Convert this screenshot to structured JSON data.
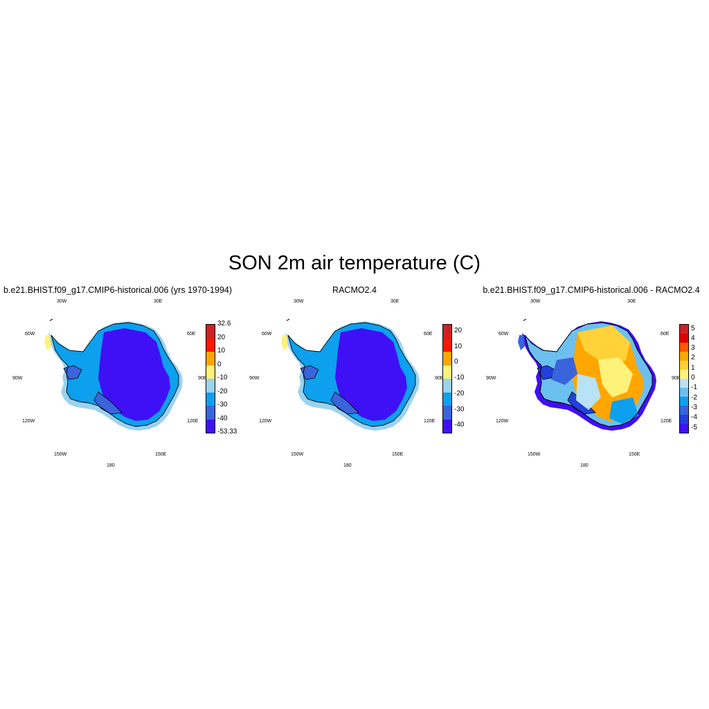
{
  "figure": {
    "title": "SON 2m air temperature (C)"
  },
  "lon_labels": [
    "30W",
    "30E",
    "60W",
    "60E",
    "90W",
    "90E",
    "120W",
    "120E",
    "150W",
    "150E",
    "180"
  ],
  "panels": [
    {
      "id": "model",
      "title": "b.e21.BHIST.f09_g17.CMIP6-historical.006 (yrs 1970-1994)",
      "colorbar": {
        "colors": [
          "#3f10f5",
          "#3a64dc",
          "#0da0ee",
          "#9ad2ef",
          "#fff27a",
          "#ffa600",
          "#ff1600",
          "#cc2222"
        ],
        "labels": [
          "-53.33",
          "-40",
          "-30",
          "-20",
          "-10",
          "0",
          "10",
          "20",
          "32.6"
        ]
      }
    },
    {
      "id": "racmo",
      "title": "RACMO2.4",
      "colorbar": {
        "colors": [
          "#3f10f5",
          "#3a64dc",
          "#0da0ee",
          "#9ad2ef",
          "#fff27a",
          "#ffa600",
          "#ff1600",
          "#cc2222"
        ],
        "labels": [
          "-40",
          "-30",
          "-20",
          "-10",
          "0",
          "10",
          "20"
        ]
      }
    },
    {
      "id": "difference",
      "title": "b.e21.BHIST.f09_g17.CMIP6-historical.006 - RACMO2.4",
      "colorbar": {
        "colors": [
          "#3f10f5",
          "#2240dd",
          "#3a64dc",
          "#0da0ee",
          "#6cc0f0",
          "#b8e2f5",
          "#fff27a",
          "#ffd23a",
          "#ffa600",
          "#ff5a00",
          "#e00000",
          "#cc2222"
        ],
        "labels": [
          "-5",
          "-4",
          "-3",
          "-2",
          "-1",
          "0",
          "1",
          "2",
          "3",
          "4",
          "5"
        ]
      }
    }
  ]
}
